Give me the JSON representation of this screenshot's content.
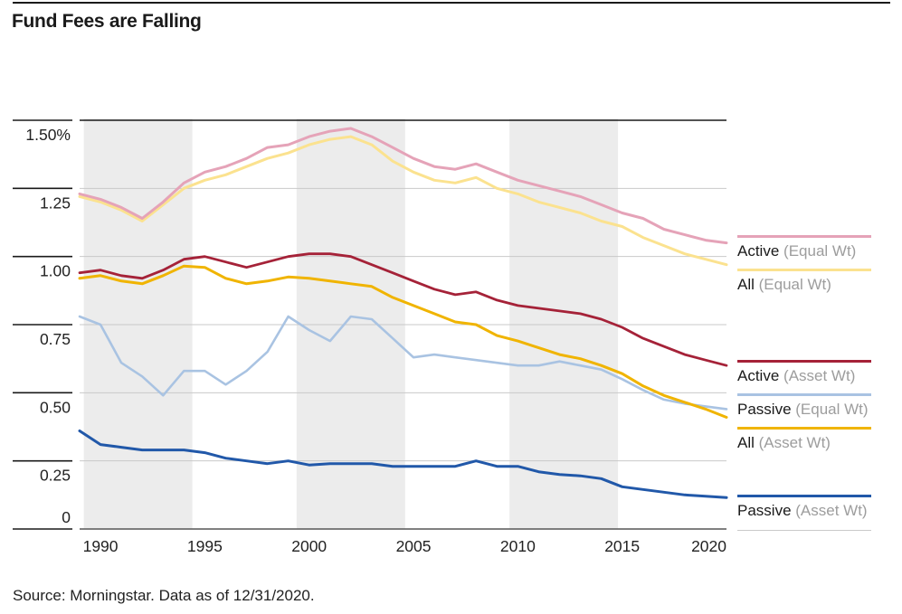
{
  "page": {
    "title": "Fund Fees are Falling",
    "source_note": "Source: Morningstar. Data as of 12/31/2020."
  },
  "legend": {
    "items": [
      {
        "name": "Active",
        "qualifier": "(Equal Wt)"
      },
      {
        "name": "All",
        "qualifier": "(Equal Wt)"
      },
      {
        "name": "Active",
        "qualifier": "(Asset Wt)"
      },
      {
        "name": "Passive",
        "qualifier": "(Equal Wt)"
      },
      {
        "name": "All",
        "qualifier": "(Asset Wt)"
      },
      {
        "name": "Passive",
        "qualifier": "(Asset Wt)"
      }
    ]
  },
  "chart_data": {
    "type": "line",
    "title": "Fund Fees are Falling",
    "unit": "percent (fund fees, asset-weighted or equal-weighted average expense ratio)",
    "x": [
      1989,
      1990,
      1991,
      1992,
      1993,
      1994,
      1995,
      1996,
      1997,
      1998,
      1999,
      2000,
      2001,
      2002,
      2003,
      2004,
      2005,
      2006,
      2007,
      2008,
      2009,
      2010,
      2011,
      2012,
      2013,
      2014,
      2015,
      2016,
      2017,
      2018,
      2019,
      2020
    ],
    "xlim": [
      1989,
      2020
    ],
    "ylim": [
      0,
      1.5
    ],
    "grid": "horizontal",
    "legend_position": "right",
    "x_ticks": [
      {
        "year": 1990,
        "label": "1990"
      },
      {
        "year": 1995,
        "label": "1995"
      },
      {
        "year": 2000,
        "label": "2000"
      },
      {
        "year": 2005,
        "label": "2005"
      },
      {
        "year": 2010,
        "label": "2010"
      },
      {
        "year": 2015,
        "label": "2015"
      },
      {
        "year": 2020,
        "label": "2020"
      }
    ],
    "y_ticks": [
      {
        "value": 1.5,
        "label": "1.50%"
      },
      {
        "value": 1.25,
        "label": "1.25"
      },
      {
        "value": 1.0,
        "label": "1.00"
      },
      {
        "value": 0.75,
        "label": "0.75"
      },
      {
        "value": 0.5,
        "label": "0.50"
      },
      {
        "value": 0.25,
        "label": "0.25"
      },
      {
        "value": 0,
        "label": "0"
      }
    ],
    "shaded_bands_years": [
      [
        1989.2,
        1994.4
      ],
      [
        1999.4,
        2004.6
      ],
      [
        2009.6,
        2014.8
      ]
    ],
    "band_color": "#ececec",
    "gridline_color": "#c9c9c9",
    "top_rule_color": "#1a1a1a",
    "axis_color": "#565656",
    "series": [
      {
        "name": "Active",
        "qualifier": "(Equal Wt)",
        "color": "#e5a3b8",
        "values": [
          1.23,
          1.21,
          1.18,
          1.14,
          1.2,
          1.27,
          1.31,
          1.33,
          1.36,
          1.4,
          1.41,
          1.44,
          1.46,
          1.47,
          1.44,
          1.4,
          1.36,
          1.33,
          1.32,
          1.34,
          1.31,
          1.28,
          1.26,
          1.24,
          1.22,
          1.19,
          1.16,
          1.14,
          1.1,
          1.08,
          1.06,
          1.05
        ]
      },
      {
        "name": "All",
        "qualifier": "(Equal Wt)",
        "color": "#fbe28f",
        "values": [
          1.22,
          1.2,
          1.17,
          1.13,
          1.19,
          1.25,
          1.28,
          1.3,
          1.33,
          1.36,
          1.38,
          1.41,
          1.43,
          1.44,
          1.41,
          1.35,
          1.31,
          1.28,
          1.27,
          1.29,
          1.25,
          1.23,
          1.2,
          1.18,
          1.16,
          1.13,
          1.11,
          1.07,
          1.04,
          1.01,
          0.99,
          0.97
        ]
      },
      {
        "name": "Active",
        "qualifier": "(Asset Wt)",
        "color": "#a52238",
        "values": [
          0.94,
          0.95,
          0.93,
          0.92,
          0.95,
          0.99,
          1.0,
          0.98,
          0.96,
          0.98,
          1.0,
          1.01,
          1.01,
          1.0,
          0.97,
          0.94,
          0.91,
          0.88,
          0.86,
          0.87,
          0.84,
          0.82,
          0.81,
          0.8,
          0.79,
          0.77,
          0.74,
          0.7,
          0.67,
          0.64,
          0.62,
          0.6
        ]
      },
      {
        "name": "Passive",
        "qualifier": "(Equal Wt)",
        "color": "#a9c3e2",
        "values": [
          0.78,
          0.75,
          0.61,
          0.56,
          0.49,
          0.58,
          0.58,
          0.53,
          0.58,
          0.65,
          0.78,
          0.73,
          0.69,
          0.78,
          0.77,
          0.7,
          0.63,
          0.64,
          0.63,
          0.62,
          0.61,
          0.6,
          0.6,
          0.615,
          0.6,
          0.585,
          0.55,
          0.51,
          0.475,
          0.46,
          0.45,
          0.44
        ]
      },
      {
        "name": "All",
        "qualifier": "(Asset Wt)",
        "color": "#f0b400",
        "values": [
          0.92,
          0.93,
          0.91,
          0.9,
          0.93,
          0.965,
          0.96,
          0.92,
          0.9,
          0.91,
          0.925,
          0.92,
          0.91,
          0.9,
          0.89,
          0.85,
          0.82,
          0.79,
          0.76,
          0.75,
          0.71,
          0.69,
          0.665,
          0.64,
          0.625,
          0.6,
          0.57,
          0.525,
          0.49,
          0.465,
          0.44,
          0.41
        ]
      },
      {
        "name": "Passive",
        "qualifier": "(Asset Wt)",
        "color": "#2158a9",
        "values": [
          0.36,
          0.31,
          0.3,
          0.29,
          0.29,
          0.29,
          0.28,
          0.26,
          0.25,
          0.24,
          0.25,
          0.235,
          0.24,
          0.24,
          0.24,
          0.23,
          0.23,
          0.23,
          0.23,
          0.25,
          0.23,
          0.23,
          0.21,
          0.2,
          0.195,
          0.185,
          0.155,
          0.145,
          0.135,
          0.125,
          0.12,
          0.115
        ]
      }
    ]
  }
}
